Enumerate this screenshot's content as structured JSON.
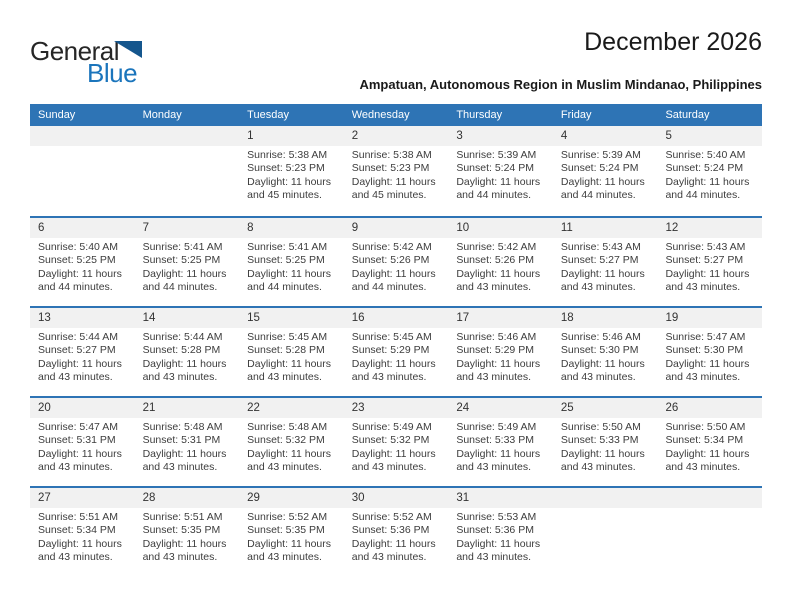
{
  "brand": {
    "name_top": "General",
    "name_bottom": "Blue"
  },
  "header": {
    "title": "December 2026",
    "subtitle": "Ampatuan, Autonomous Region in Muslim Mindanao, Philippines"
  },
  "colors": {
    "header_blue": "#2E74B5",
    "week_separator_blue": "#2E74B5",
    "day_strip_gray": "#F1F1F1",
    "logo_blue": "#1B75BC",
    "logo_triangle_blue": "#15568D"
  },
  "weekdays": [
    "Sunday",
    "Monday",
    "Tuesday",
    "Wednesday",
    "Thursday",
    "Friday",
    "Saturday"
  ],
  "weeks": [
    [
      null,
      null,
      {
        "day": "1",
        "lines": [
          "Sunrise: 5:38 AM",
          "Sunset: 5:23 PM",
          "Daylight: 11 hours",
          "and 45 minutes."
        ]
      },
      {
        "day": "2",
        "lines": [
          "Sunrise: 5:38 AM",
          "Sunset: 5:23 PM",
          "Daylight: 11 hours",
          "and 45 minutes."
        ]
      },
      {
        "day": "3",
        "lines": [
          "Sunrise: 5:39 AM",
          "Sunset: 5:24 PM",
          "Daylight: 11 hours",
          "and 44 minutes."
        ]
      },
      {
        "day": "4",
        "lines": [
          "Sunrise: 5:39 AM",
          "Sunset: 5:24 PM",
          "Daylight: 11 hours",
          "and 44 minutes."
        ]
      },
      {
        "day": "5",
        "lines": [
          "Sunrise: 5:40 AM",
          "Sunset: 5:24 PM",
          "Daylight: 11 hours",
          "and 44 minutes."
        ]
      }
    ],
    [
      {
        "day": "6",
        "lines": [
          "Sunrise: 5:40 AM",
          "Sunset: 5:25 PM",
          "Daylight: 11 hours",
          "and 44 minutes."
        ]
      },
      {
        "day": "7",
        "lines": [
          "Sunrise: 5:41 AM",
          "Sunset: 5:25 PM",
          "Daylight: 11 hours",
          "and 44 minutes."
        ]
      },
      {
        "day": "8",
        "lines": [
          "Sunrise: 5:41 AM",
          "Sunset: 5:25 PM",
          "Daylight: 11 hours",
          "and 44 minutes."
        ]
      },
      {
        "day": "9",
        "lines": [
          "Sunrise: 5:42 AM",
          "Sunset: 5:26 PM",
          "Daylight: 11 hours",
          "and 44 minutes."
        ]
      },
      {
        "day": "10",
        "lines": [
          "Sunrise: 5:42 AM",
          "Sunset: 5:26 PM",
          "Daylight: 11 hours",
          "and 43 minutes."
        ]
      },
      {
        "day": "11",
        "lines": [
          "Sunrise: 5:43 AM",
          "Sunset: 5:27 PM",
          "Daylight: 11 hours",
          "and 43 minutes."
        ]
      },
      {
        "day": "12",
        "lines": [
          "Sunrise: 5:43 AM",
          "Sunset: 5:27 PM",
          "Daylight: 11 hours",
          "and 43 minutes."
        ]
      }
    ],
    [
      {
        "day": "13",
        "lines": [
          "Sunrise: 5:44 AM",
          "Sunset: 5:27 PM",
          "Daylight: 11 hours",
          "and 43 minutes."
        ]
      },
      {
        "day": "14",
        "lines": [
          "Sunrise: 5:44 AM",
          "Sunset: 5:28 PM",
          "Daylight: 11 hours",
          "and 43 minutes."
        ]
      },
      {
        "day": "15",
        "lines": [
          "Sunrise: 5:45 AM",
          "Sunset: 5:28 PM",
          "Daylight: 11 hours",
          "and 43 minutes."
        ]
      },
      {
        "day": "16",
        "lines": [
          "Sunrise: 5:45 AM",
          "Sunset: 5:29 PM",
          "Daylight: 11 hours",
          "and 43 minutes."
        ]
      },
      {
        "day": "17",
        "lines": [
          "Sunrise: 5:46 AM",
          "Sunset: 5:29 PM",
          "Daylight: 11 hours",
          "and 43 minutes."
        ]
      },
      {
        "day": "18",
        "lines": [
          "Sunrise: 5:46 AM",
          "Sunset: 5:30 PM",
          "Daylight: 11 hours",
          "and 43 minutes."
        ]
      },
      {
        "day": "19",
        "lines": [
          "Sunrise: 5:47 AM",
          "Sunset: 5:30 PM",
          "Daylight: 11 hours",
          "and 43 minutes."
        ]
      }
    ],
    [
      {
        "day": "20",
        "lines": [
          "Sunrise: 5:47 AM",
          "Sunset: 5:31 PM",
          "Daylight: 11 hours",
          "and 43 minutes."
        ]
      },
      {
        "day": "21",
        "lines": [
          "Sunrise: 5:48 AM",
          "Sunset: 5:31 PM",
          "Daylight: 11 hours",
          "and 43 minutes."
        ]
      },
      {
        "day": "22",
        "lines": [
          "Sunrise: 5:48 AM",
          "Sunset: 5:32 PM",
          "Daylight: 11 hours",
          "and 43 minutes."
        ]
      },
      {
        "day": "23",
        "lines": [
          "Sunrise: 5:49 AM",
          "Sunset: 5:32 PM",
          "Daylight: 11 hours",
          "and 43 minutes."
        ]
      },
      {
        "day": "24",
        "lines": [
          "Sunrise: 5:49 AM",
          "Sunset: 5:33 PM",
          "Daylight: 11 hours",
          "and 43 minutes."
        ]
      },
      {
        "day": "25",
        "lines": [
          "Sunrise: 5:50 AM",
          "Sunset: 5:33 PM",
          "Daylight: 11 hours",
          "and 43 minutes."
        ]
      },
      {
        "day": "26",
        "lines": [
          "Sunrise: 5:50 AM",
          "Sunset: 5:34 PM",
          "Daylight: 11 hours",
          "and 43 minutes."
        ]
      }
    ],
    [
      {
        "day": "27",
        "lines": [
          "Sunrise: 5:51 AM",
          "Sunset: 5:34 PM",
          "Daylight: 11 hours",
          "and 43 minutes."
        ]
      },
      {
        "day": "28",
        "lines": [
          "Sunrise: 5:51 AM",
          "Sunset: 5:35 PM",
          "Daylight: 11 hours",
          "and 43 minutes."
        ]
      },
      {
        "day": "29",
        "lines": [
          "Sunrise: 5:52 AM",
          "Sunset: 5:35 PM",
          "Daylight: 11 hours",
          "and 43 minutes."
        ]
      },
      {
        "day": "30",
        "lines": [
          "Sunrise: 5:52 AM",
          "Sunset: 5:36 PM",
          "Daylight: 11 hours",
          "and 43 minutes."
        ]
      },
      {
        "day": "31",
        "lines": [
          "Sunrise: 5:53 AM",
          "Sunset: 5:36 PM",
          "Daylight: 11 hours",
          "and 43 minutes."
        ]
      },
      null,
      null
    ]
  ]
}
